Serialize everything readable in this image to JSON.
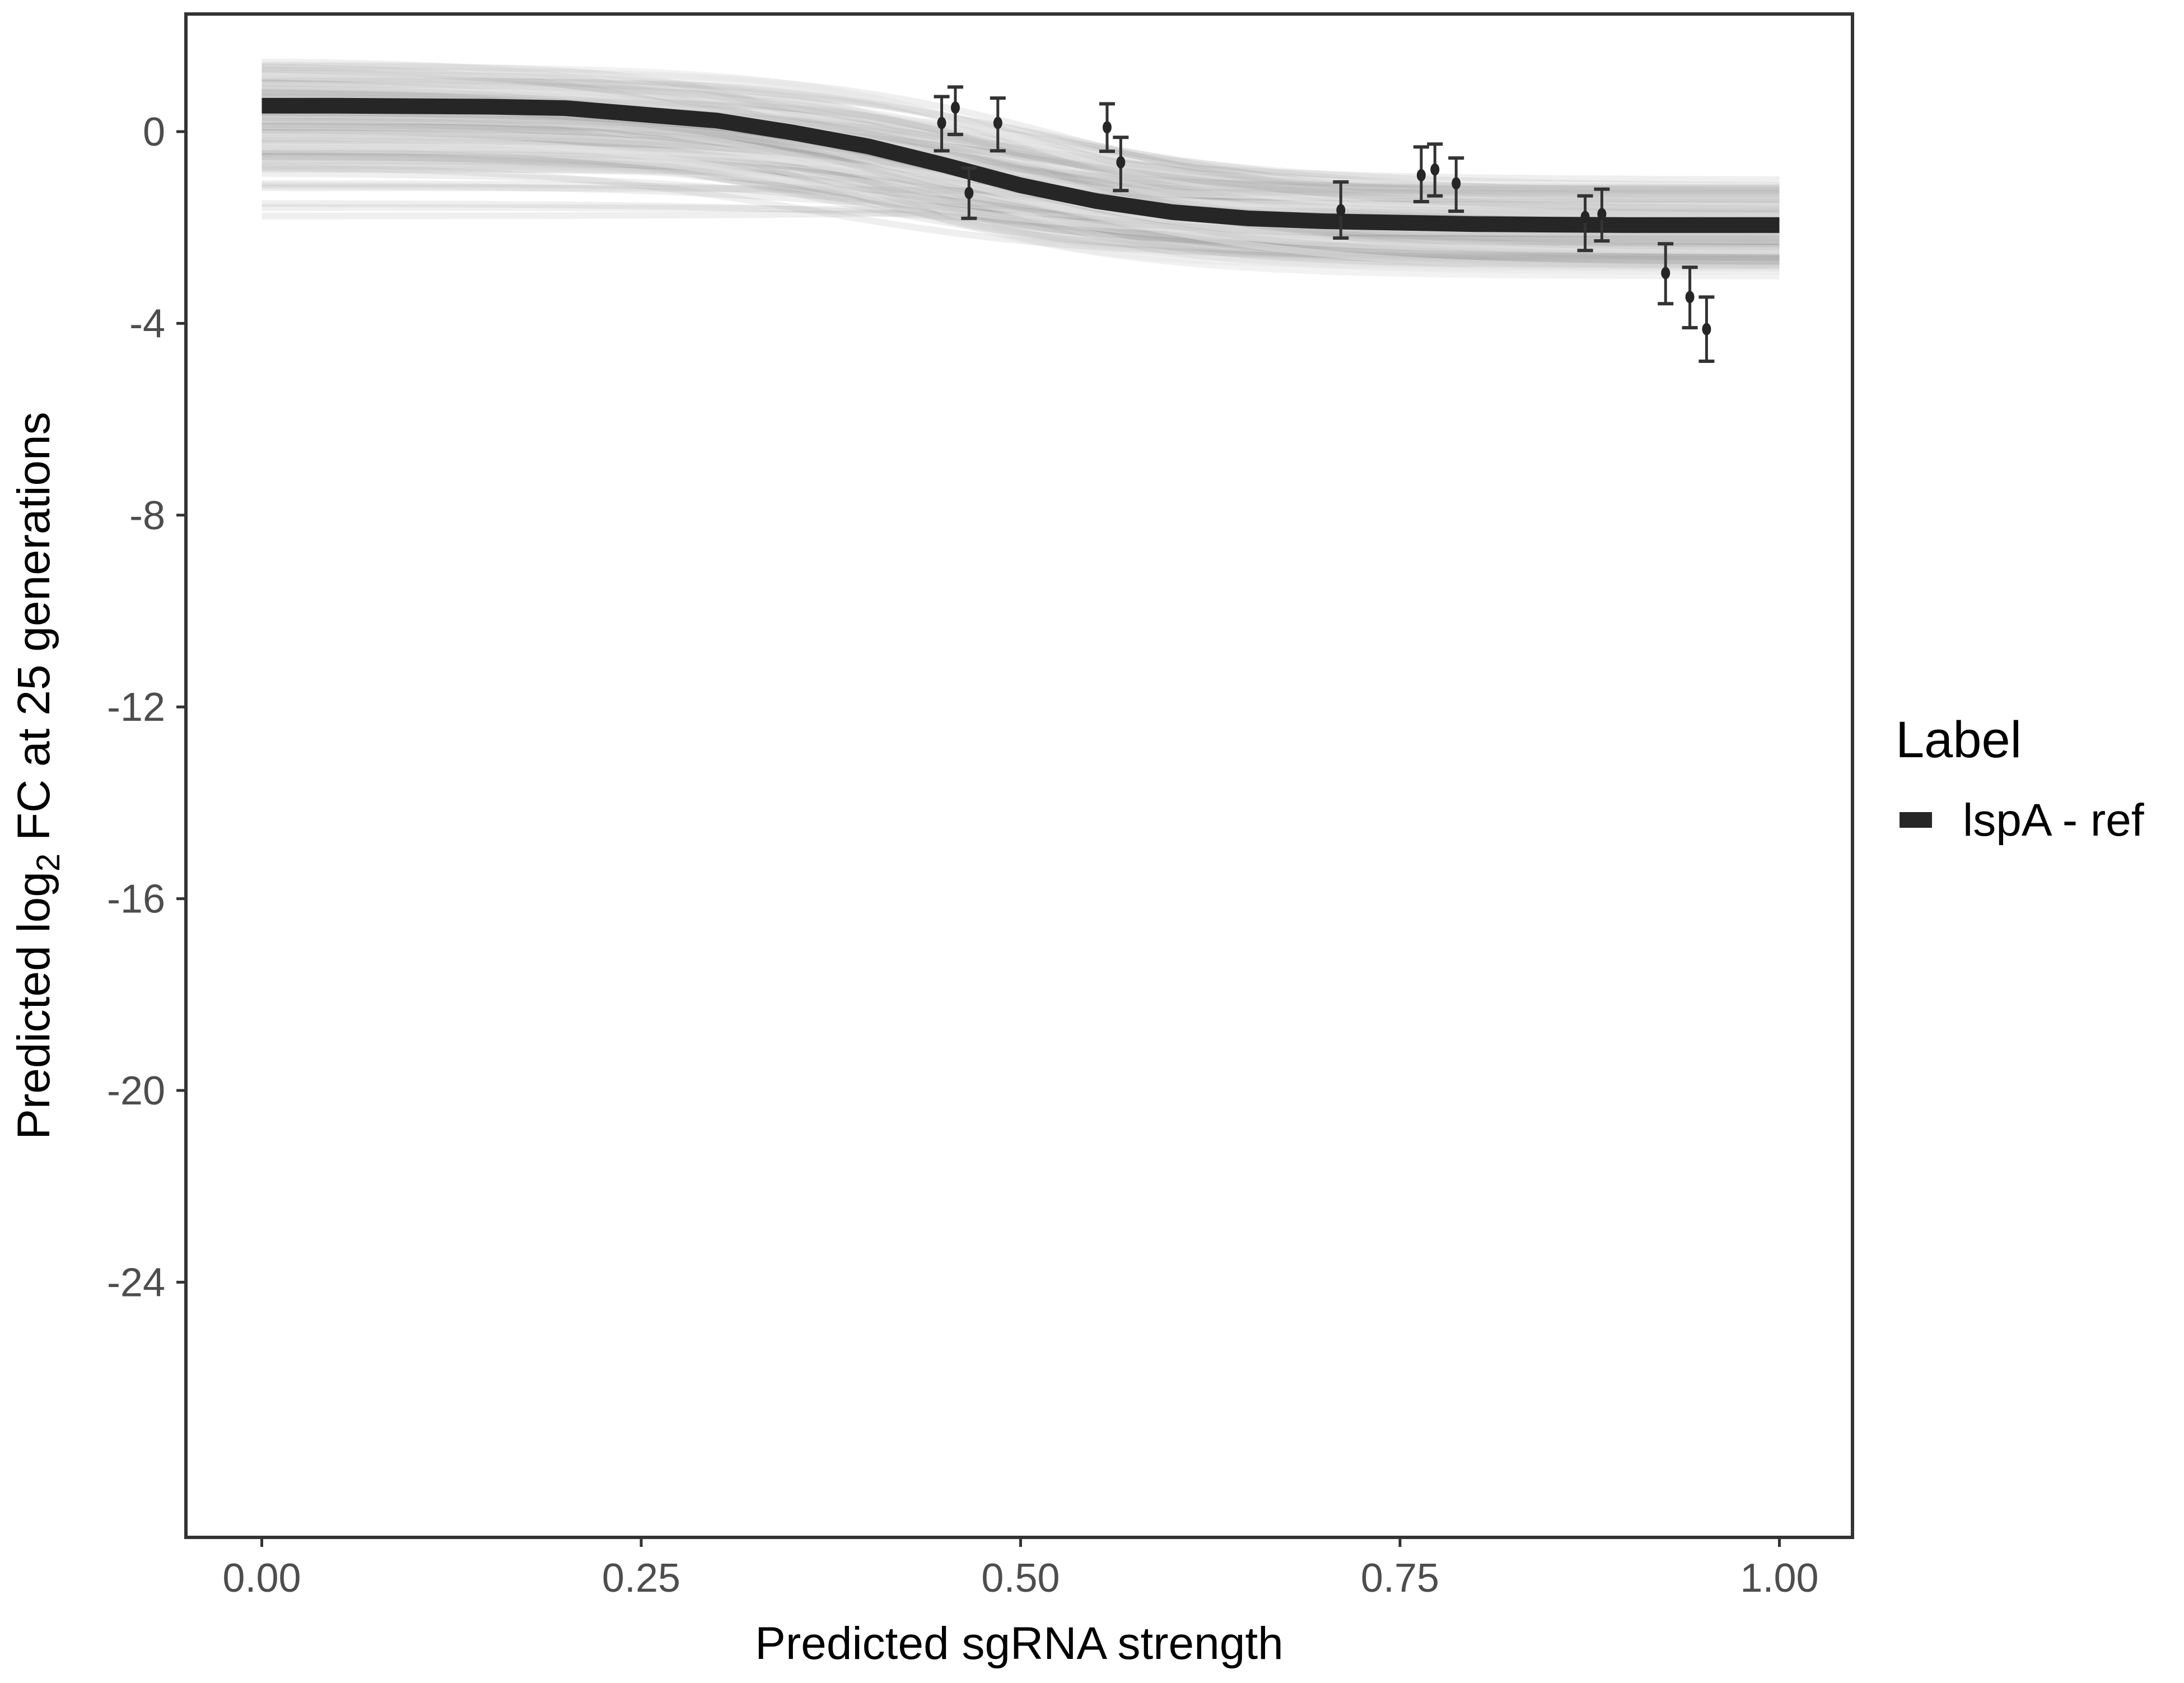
{
  "chart_data": {
    "type": "line",
    "title": "",
    "xlabel": "Predicted sgRNA strength",
    "ylabel_prefix": "Predicted  log",
    "ylabel_sub": "2",
    "ylabel_suffix": " FC at 25 generations",
    "xlim": [
      -0.05,
      1.05
    ],
    "ylim": [
      -29.3,
      2.45
    ],
    "x_ticks": [
      0,
      0.25,
      0.5,
      0.75,
      1
    ],
    "x_tick_labels": [
      "0.00",
      "0.25",
      "0.50",
      "0.75",
      "1.00"
    ],
    "y_ticks": [
      0,
      -4,
      -8,
      -12,
      -16,
      -20,
      -24
    ],
    "y_tick_labels": [
      "0",
      "-4",
      "-8",
      "-12",
      "-16",
      "-20",
      "-24"
    ],
    "grid": false,
    "legend": {
      "title": "Label",
      "position": "right",
      "entries": [
        {
          "label": "lspA - ref",
          "color": "#262626"
        }
      ]
    },
    "colors": {
      "fit_line": "#262626",
      "posterior_draws": "#a6a6a6",
      "points": "#262626",
      "frame": "#333333"
    },
    "fit_curve": {
      "x": [
        0,
        0.05,
        0.1,
        0.15,
        0.2,
        0.25,
        0.3,
        0.35,
        0.4,
        0.45,
        0.5,
        0.55,
        0.6,
        0.65,
        0.7,
        0.75,
        0.8,
        0.85,
        0.9,
        0.95,
        1.0
      ],
      "y": [
        0.54,
        0.54,
        0.53,
        0.52,
        0.49,
        0.36,
        0.23,
        -0.02,
        -0.31,
        -0.7,
        -1.12,
        -1.45,
        -1.68,
        -1.81,
        -1.87,
        -1.9,
        -1.93,
        -1.94,
        -1.95,
        -1.95,
        -1.95
      ]
    },
    "points": [
      {
        "x": 0.448,
        "y": 0.18,
        "ymin": -0.4,
        "ymax": 0.73
      },
      {
        "x": 0.457,
        "y": 0.5,
        "ymin": -0.06,
        "ymax": 0.93
      },
      {
        "x": 0.466,
        "y": -1.28,
        "ymin": -1.81,
        "ymax": -0.76
      },
      {
        "x": 0.485,
        "y": 0.18,
        "ymin": -0.4,
        "ymax": 0.7
      },
      {
        "x": 0.557,
        "y": 0.09,
        "ymin": -0.41,
        "ymax": 0.58
      },
      {
        "x": 0.566,
        "y": -0.64,
        "ymin": -1.23,
        "ymax": -0.12
      },
      {
        "x": 0.711,
        "y": -1.64,
        "ymin": -2.22,
        "ymax": -1.05
      },
      {
        "x": 0.764,
        "y": -0.91,
        "ymin": -1.46,
        "ymax": -0.32
      },
      {
        "x": 0.773,
        "y": -0.79,
        "ymin": -1.34,
        "ymax": -0.26
      },
      {
        "x": 0.787,
        "y": -1.08,
        "ymin": -1.66,
        "ymax": -0.55
      },
      {
        "x": 0.872,
        "y": -1.78,
        "ymin": -2.48,
        "ymax": -1.34
      },
      {
        "x": 0.883,
        "y": -1.72,
        "ymin": -2.28,
        "ymax": -1.2
      },
      {
        "x": 0.925,
        "y": -2.95,
        "ymin": -3.59,
        "ymax": -2.34
      },
      {
        "x": 0.941,
        "y": -3.45,
        "ymin": -4.09,
        "ymax": -2.83
      },
      {
        "x": 0.952,
        "y": -4.12,
        "ymin": -4.79,
        "ymax": -3.45
      }
    ]
  }
}
